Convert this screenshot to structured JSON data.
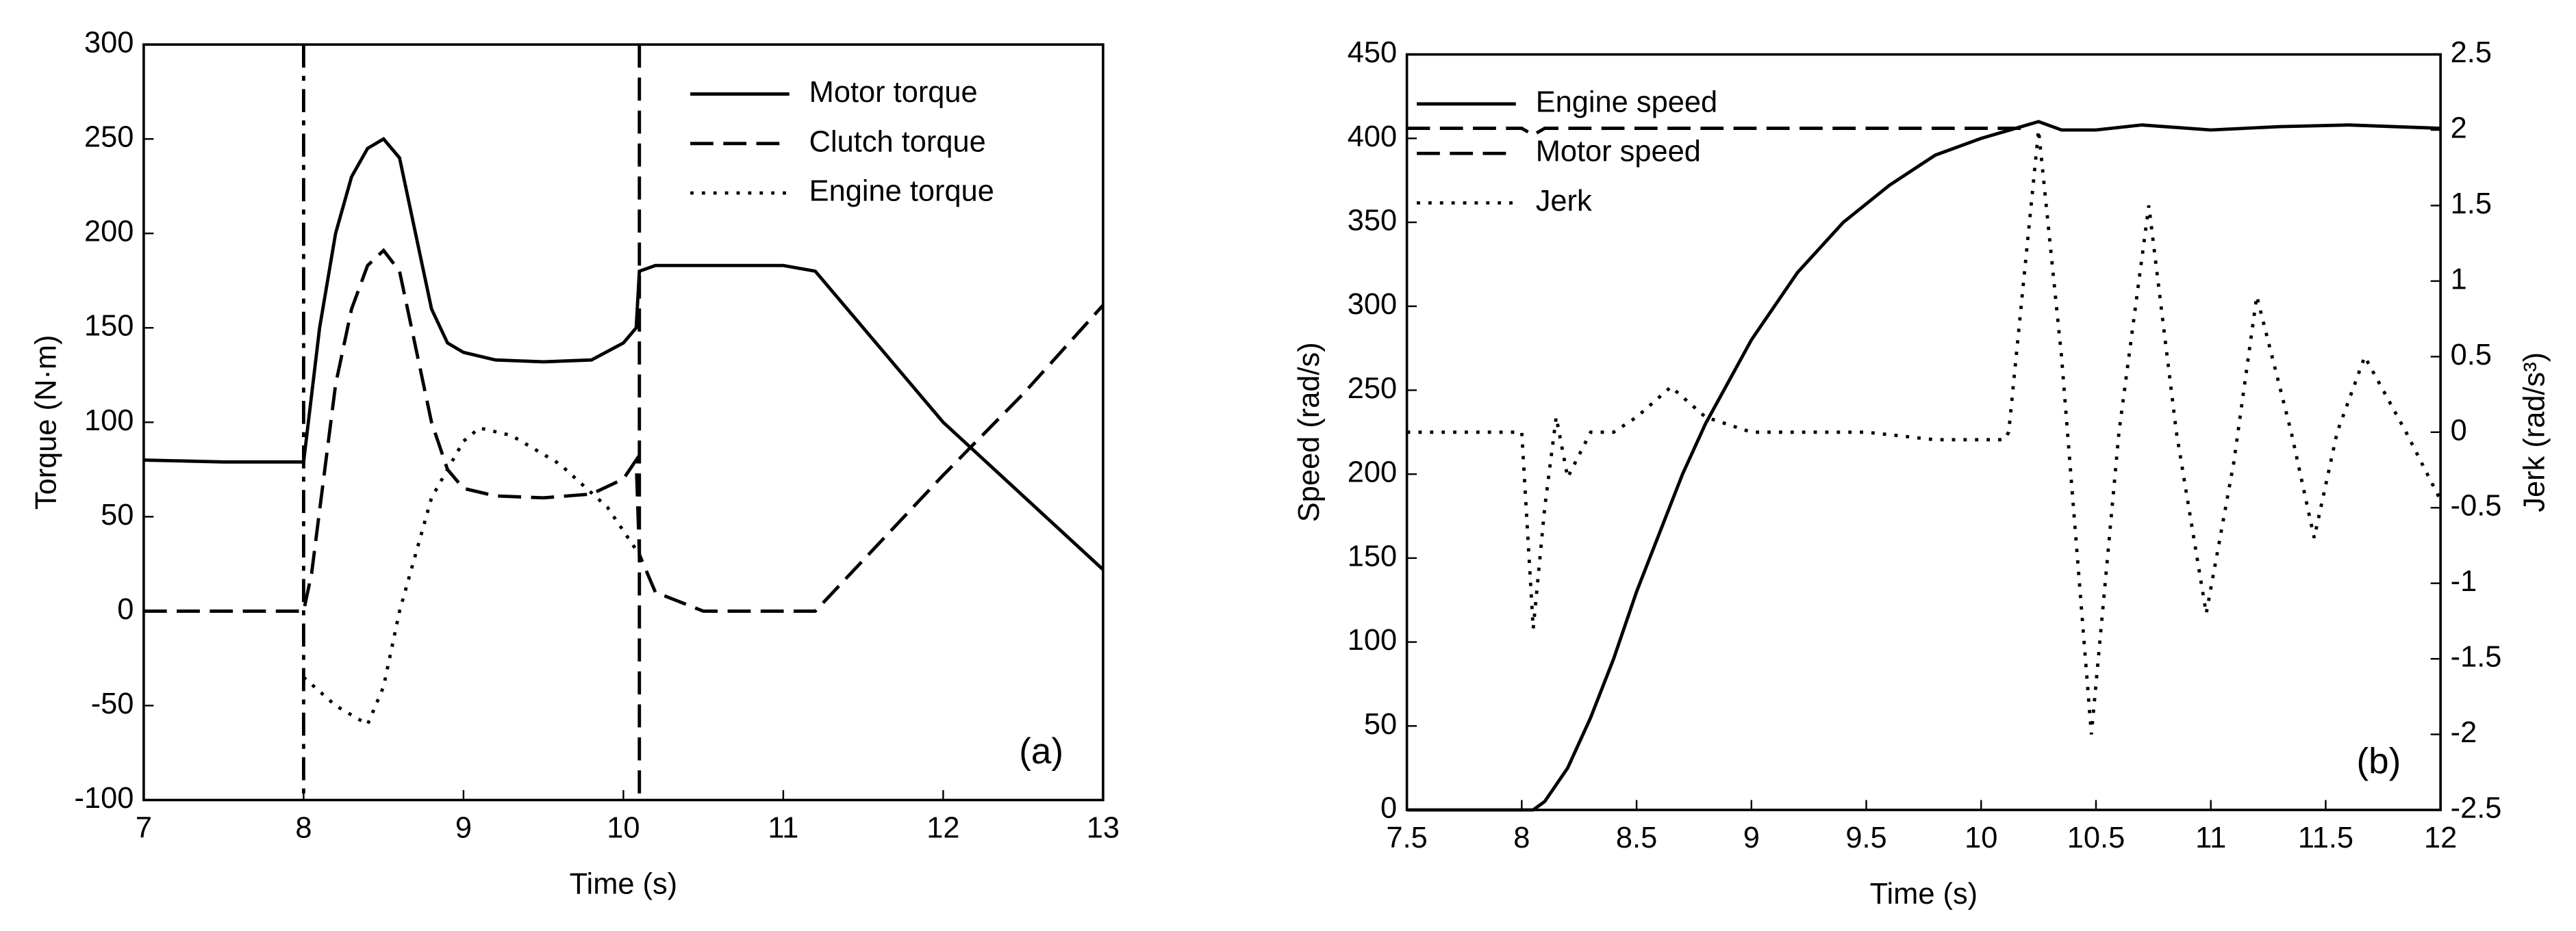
{
  "chart_data": [
    {
      "type": "line",
      "annotation": "(a)",
      "x_label": "Time (s)",
      "y_label": "Torque (N·m)",
      "xlim": [
        7,
        13
      ],
      "xticks": [
        7,
        8,
        9,
        10,
        11,
        12,
        13
      ],
      "ylim": [
        -100,
        300
      ],
      "yticks": [
        -100,
        -50,
        0,
        50,
        100,
        150,
        200,
        250,
        300
      ],
      "legend": "upper right",
      "vlines": [
        8,
        10.1
      ],
      "series": [
        {
          "name": "Motor torque",
          "color": "#000000",
          "linestyle": "solid",
          "x": [
            7,
            7.5,
            8,
            8.1,
            8.2,
            8.3,
            8.4,
            8.5,
            8.6,
            8.7,
            8.8,
            8.9,
            9,
            9.2,
            9.5,
            9.8,
            10,
            10.08,
            10.1,
            10.2,
            11,
            11.2,
            12,
            13
          ],
          "values": [
            80,
            79,
            79,
            150,
            200,
            230,
            245,
            250,
            240,
            200,
            160,
            142,
            137,
            133,
            132,
            133,
            142,
            150,
            180,
            183,
            183,
            180,
            100,
            22
          ]
        },
        {
          "name": "Clutch torque",
          "color": "#000000",
          "linestyle": "dashed",
          "x": [
            7,
            8,
            8.05,
            8.2,
            8.3,
            8.4,
            8.5,
            8.6,
            8.7,
            8.8,
            8.9,
            9,
            9.2,
            9.5,
            9.8,
            10,
            10.08,
            10.1,
            10.2,
            10.5,
            11.2,
            12,
            12.5,
            13
          ],
          "values": [
            0,
            0,
            20,
            120,
            160,
            183,
            191,
            180,
            140,
            100,
            75,
            65,
            61,
            60,
            62,
            70,
            80,
            30,
            10,
            0,
            0,
            72,
            115,
            162
          ]
        },
        {
          "name": "Engine torque",
          "color": "#000000",
          "linestyle": "dotted",
          "x": [
            8,
            8.2,
            8.4,
            8.5,
            8.6,
            8.8,
            9,
            9.1,
            9.3,
            9.6,
            9.9,
            10.1
          ],
          "values": [
            -35,
            -50,
            -60,
            -40,
            0,
            60,
            90,
            97,
            93,
            78,
            55,
            30
          ]
        }
      ]
    },
    {
      "type": "line",
      "annotation": "(b)",
      "x_label": "Time (s)",
      "y_label": "Speed (rad/s)",
      "y2_label": "Jerk (rad/s³)",
      "xlim": [
        7.5,
        12
      ],
      "xticks": [
        7.5,
        8,
        8.5,
        9,
        9.5,
        10,
        10.5,
        11,
        11.5,
        12
      ],
      "ylim": [
        0,
        450
      ],
      "yticks": [
        0,
        50,
        100,
        150,
        200,
        250,
        300,
        350,
        400,
        450
      ],
      "y2lim": [
        -2.5,
        2.5
      ],
      "y2ticks": [
        -2.5,
        -2,
        -1.5,
        -1,
        -0.5,
        0,
        0.5,
        1,
        1.5,
        2,
        2.5
      ],
      "legend": "upper left",
      "vlines": [],
      "series": [
        {
          "name": "Engine speed",
          "color": "#000000",
          "linestyle": "solid",
          "x": [
            7.5,
            8.05,
            8.1,
            8.2,
            8.3,
            8.4,
            8.5,
            8.6,
            8.7,
            8.8,
            8.9,
            9,
            9.2,
            9.4,
            9.6,
            9.8,
            10,
            10.2,
            10.25,
            10.35,
            10.5,
            10.7,
            11,
            11.3,
            11.6,
            12
          ],
          "values": [
            0,
            0,
            5,
            25,
            55,
            90,
            130,
            165,
            200,
            230,
            255,
            280,
            320,
            350,
            372,
            390,
            400,
            408,
            410,
            405,
            405,
            408,
            405,
            407,
            408,
            406
          ]
        },
        {
          "name": "Motor speed",
          "color": "#000000",
          "linestyle": "dashed",
          "x": [
            7.5,
            8,
            8.05,
            8.1,
            10.2
          ],
          "values": [
            406,
            406,
            402,
            406,
            406
          ]
        },
        {
          "name": "Jerk",
          "color": "#000000",
          "linestyle": "dotted",
          "axis": "y2",
          "x": [
            7.5,
            8,
            8.05,
            8.1,
            8.15,
            8.2,
            8.3,
            8.4,
            8.5,
            8.65,
            8.8,
            9,
            9.5,
            9.8,
            10.1,
            10.12,
            10.25,
            10.35,
            10.48,
            10.6,
            10.73,
            10.85,
            10.98,
            11.1,
            11.2,
            11.35,
            11.45,
            11.55,
            11.67,
            11.85,
            12
          ],
          "values": [
            0,
            0,
            -1.3,
            -0.5,
            0.1,
            -0.3,
            0,
            0,
            0.1,
            0.3,
            0.1,
            0,
            0,
            -0.05,
            -0.05,
            0,
            2,
            0.5,
            -2,
            0,
            1.5,
            0,
            -1.2,
            -0.2,
            0.9,
            0,
            -0.7,
            0,
            0.5,
            0,
            -0.45
          ]
        }
      ]
    }
  ]
}
